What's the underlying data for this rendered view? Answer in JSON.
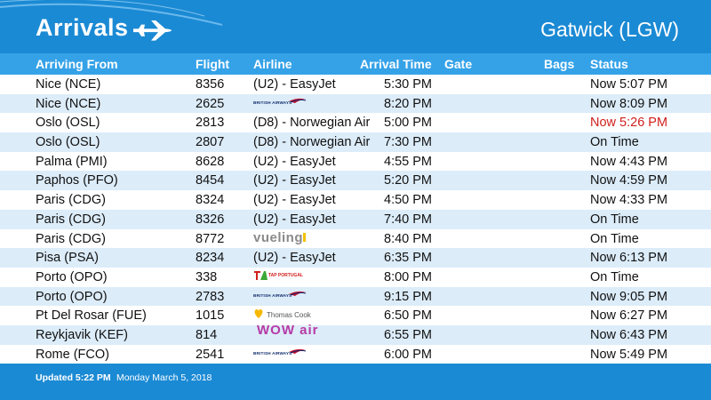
{
  "header": {
    "title": "Arrivals",
    "airport": "Gatwick (LGW)"
  },
  "columns": {
    "from": "Arriving From",
    "flight": "Flight",
    "airline": "Airline",
    "time": "Arrival Time",
    "gate": "Gate",
    "bags": "Bags",
    "status": "Status"
  },
  "flights": [
    {
      "from": "Nice (NCE)",
      "flight": "8356",
      "airline": "(U2) - EasyJet",
      "logo": "",
      "time": "5:30 PM",
      "status": "Now 5:07 PM"
    },
    {
      "from": "Nice (NCE)",
      "flight": "2625",
      "airline": "",
      "logo": "BRITISH AIRWAYS",
      "time": "8:20 PM",
      "status": "Now 8:09 PM"
    },
    {
      "from": "Oslo (OSL)",
      "flight": "2813",
      "airline": "(D8) - Norwegian Air",
      "logo": "",
      "time": "5:00 PM",
      "status": "Now 5:26 PM"
    },
    {
      "from": "Oslo (OSL)",
      "flight": "2807",
      "airline": "(D8) - Norwegian Air",
      "logo": "",
      "time": "7:30 PM",
      "status": "On Time"
    },
    {
      "from": "Palma (PMI)",
      "flight": "8628",
      "airline": "(U2) - EasyJet",
      "logo": "",
      "time": "4:55 PM",
      "status": "Now 4:43 PM"
    },
    {
      "from": "Paphos (PFO)",
      "flight": "8454",
      "airline": "(U2) - EasyJet",
      "logo": "",
      "time": "5:20 PM",
      "status": "Now 4:59 PM"
    },
    {
      "from": "Paris (CDG)",
      "flight": "8324",
      "airline": "(U2) - EasyJet",
      "logo": "",
      "time": "4:50 PM",
      "status": "Now 4:33 PM"
    },
    {
      "from": "Paris (CDG)",
      "flight": "8326",
      "airline": "(U2) - EasyJet",
      "logo": "",
      "time": "7:40 PM",
      "status": "On Time"
    },
    {
      "from": "Paris (CDG)",
      "flight": "8772",
      "airline": "",
      "logo": "vueling",
      "time": "8:40 PM",
      "status": "On Time"
    },
    {
      "from": "Pisa (PSA)",
      "flight": "8234",
      "airline": "(U2) - EasyJet",
      "logo": "",
      "time": "6:35 PM",
      "status": "Now 6:13 PM"
    },
    {
      "from": "Porto (OPO)",
      "flight": "338",
      "airline": "",
      "logo": "TAP PORTUGAL",
      "time": "8:00 PM",
      "status": "On Time"
    },
    {
      "from": "Porto (OPO)",
      "flight": "2783",
      "airline": "",
      "logo": "BRITISH AIRWAYS",
      "time": "9:15 PM",
      "status": "Now 9:05 PM"
    },
    {
      "from": "Pt Del Rosar (FUE)",
      "flight": "1015",
      "airline": "",
      "logo": "Thomas Cook",
      "time": "6:50 PM",
      "status": "Now 6:27 PM"
    },
    {
      "from": "Reykjavik (KEF)",
      "flight": "814",
      "airline": "",
      "logo": "WOW air",
      "time": "6:55 PM",
      "status": "Now 6:43 PM"
    },
    {
      "from": "Rome (FCO)",
      "flight": "2541",
      "airline": "",
      "logo": "BRITISH AIRWAYS",
      "time": "6:00 PM",
      "status": "Now 5:49 PM"
    }
  ],
  "footer": {
    "updated": "Updated 5:22 PM",
    "date": "Monday March 5, 2018"
  },
  "colors": {
    "brand_blue": "#1b8ad4",
    "header_blue": "#35a2e8",
    "row_alt": "#dcecf9",
    "late_red": "#d0201c"
  }
}
